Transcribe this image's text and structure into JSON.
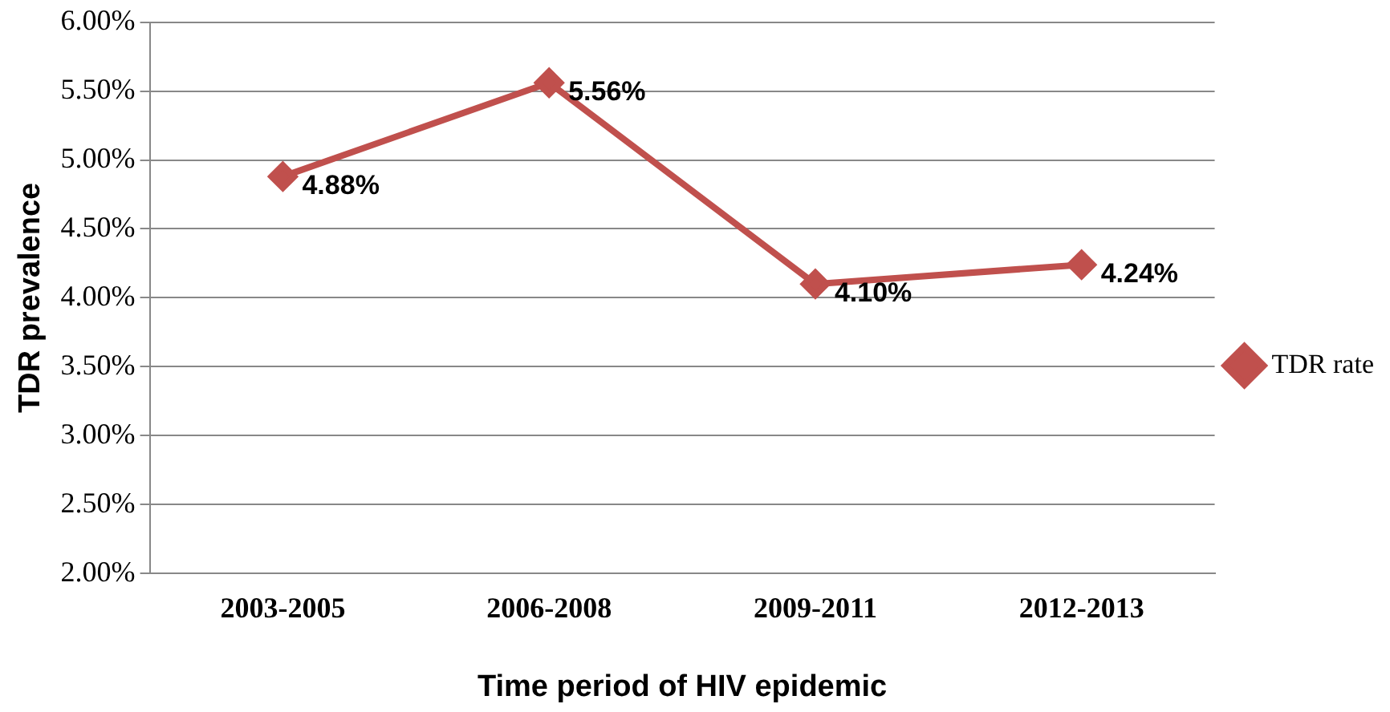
{
  "chart_data": {
    "type": "line",
    "xlabel": "Time period of HIV epidemic",
    "ylabel": "TDR prevalence",
    "categories": [
      "2003-2005",
      "2006-2008",
      "2009-2011",
      "2012-2013"
    ],
    "series": [
      {
        "name": "TDR rate",
        "color": "#c0504d",
        "values": [
          4.88,
          5.56,
          4.1,
          4.24
        ],
        "value_labels": [
          "4.88%",
          "5.56%",
          "4.10%",
          "4.24%"
        ]
      }
    ],
    "ylim": [
      2,
      6
    ],
    "yticks": [
      {
        "value": 2,
        "label": "2.00%"
      },
      {
        "value": 2.5,
        "label": "2.50%"
      },
      {
        "value": 3,
        "label": "3.00%"
      },
      {
        "value": 3.5,
        "label": "3.50%"
      },
      {
        "value": 4,
        "label": "4.00%"
      },
      {
        "value": 4.5,
        "label": "4.50%"
      },
      {
        "value": 5,
        "label": "5.00%"
      },
      {
        "value": 5.5,
        "label": "5.50%"
      },
      {
        "value": 6,
        "label": "6.00%"
      }
    ],
    "grid": "y",
    "legend": "right",
    "marker": "diamond",
    "line_style": "solid"
  }
}
